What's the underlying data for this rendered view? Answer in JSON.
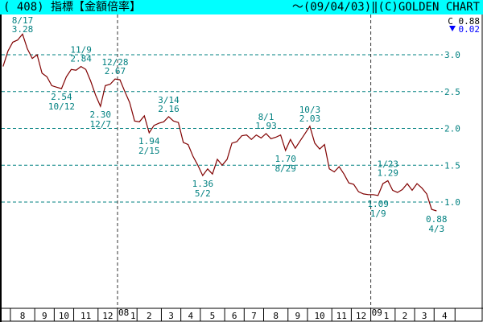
{
  "header": {
    "title": "( 408) 指標【金額倍率】",
    "right": "～(09/04/03)‖(C)GOLDEN CHART"
  },
  "last": {
    "label": "C",
    "value": "0.88",
    "change_icon": "triangle-down-icon",
    "change": "0.02"
  },
  "colors": {
    "header_bg": "#00ffff",
    "line": "#800000",
    "grid": "#008080",
    "label": "#008080",
    "change": "#0000ff"
  },
  "chart_data": {
    "type": "line",
    "title": "",
    "xlabel": "",
    "ylabel": "",
    "ylim": [
      0.7,
      3.35
    ],
    "yticks": [
      "3.0",
      "2.5",
      "2.0",
      "1.5",
      "1.0"
    ],
    "ytick_values": [
      3.0,
      2.5,
      2.0,
      1.5,
      1.0
    ],
    "grid": true,
    "x_month_labels": [
      "8",
      "9",
      "10",
      "11",
      "12",
      "1",
      "2",
      "3",
      "4",
      "5",
      "6",
      "7",
      "8",
      "9",
      "10",
      "11",
      "12",
      "1",
      "2",
      "3",
      "4"
    ],
    "x_year_labels": [
      "08",
      "09"
    ],
    "points": [
      [
        "2007-07-20",
        2.84
      ],
      [
        "2007-07-27",
        3.05
      ],
      [
        "2007-08-03",
        3.17
      ],
      [
        "2007-08-10",
        3.2
      ],
      [
        "2007-08-17",
        3.28
      ],
      [
        "2007-08-24",
        3.08
      ],
      [
        "2007-08-31",
        2.95
      ],
      [
        "2007-09-07",
        3.0
      ],
      [
        "2007-09-14",
        2.75
      ],
      [
        "2007-09-21",
        2.7
      ],
      [
        "2007-09-28",
        2.58
      ],
      [
        "2007-10-05",
        2.56
      ],
      [
        "2007-10-12",
        2.54
      ],
      [
        "2007-10-19",
        2.7
      ],
      [
        "2007-10-26",
        2.8
      ],
      [
        "2007-11-02",
        2.79
      ],
      [
        "2007-11-09",
        2.84
      ],
      [
        "2007-11-16",
        2.8
      ],
      [
        "2007-11-23",
        2.64
      ],
      [
        "2007-11-30",
        2.45
      ],
      [
        "2007-12-07",
        2.3
      ],
      [
        "2007-12-14",
        2.58
      ],
      [
        "2007-12-21",
        2.6
      ],
      [
        "2007-12-28",
        2.67
      ],
      [
        "2008-01-04",
        2.66
      ],
      [
        "2008-01-11",
        2.5
      ],
      [
        "2008-01-18",
        2.35
      ],
      [
        "2008-01-25",
        2.1
      ],
      [
        "2008-02-01",
        2.09
      ],
      [
        "2008-02-08",
        2.17
      ],
      [
        "2008-02-15",
        1.94
      ],
      [
        "2008-02-22",
        2.04
      ],
      [
        "2008-02-29",
        2.07
      ],
      [
        "2008-03-07",
        2.09
      ],
      [
        "2008-03-14",
        2.16
      ],
      [
        "2008-03-21",
        2.1
      ],
      [
        "2008-03-28",
        2.08
      ],
      [
        "2008-04-04",
        1.81
      ],
      [
        "2008-04-11",
        1.78
      ],
      [
        "2008-04-18",
        1.62
      ],
      [
        "2008-04-25",
        1.5
      ],
      [
        "2008-05-02",
        1.36
      ],
      [
        "2008-05-09",
        1.45
      ],
      [
        "2008-05-16",
        1.38
      ],
      [
        "2008-05-23",
        1.58
      ],
      [
        "2008-05-30",
        1.5
      ],
      [
        "2008-06-06",
        1.58
      ],
      [
        "2008-06-13",
        1.8
      ],
      [
        "2008-06-20",
        1.82
      ],
      [
        "2008-06-27",
        1.9
      ],
      [
        "2008-07-04",
        1.91
      ],
      [
        "2008-07-11",
        1.85
      ],
      [
        "2008-07-18",
        1.91
      ],
      [
        "2008-07-25",
        1.87
      ],
      [
        "2008-08-01",
        1.93
      ],
      [
        "2008-08-08",
        1.86
      ],
      [
        "2008-08-15",
        1.88
      ],
      [
        "2008-08-22",
        1.91
      ],
      [
        "2008-08-29",
        1.7
      ],
      [
        "2008-09-05",
        1.85
      ],
      [
        "2008-09-12",
        1.73
      ],
      [
        "2008-09-19",
        1.83
      ],
      [
        "2008-09-26",
        1.93
      ],
      [
        "2008-10-03",
        2.03
      ],
      [
        "2008-10-10",
        1.8
      ],
      [
        "2008-10-17",
        1.72
      ],
      [
        "2008-10-24",
        1.78
      ],
      [
        "2008-10-31",
        1.45
      ],
      [
        "2008-11-07",
        1.41
      ],
      [
        "2008-11-14",
        1.48
      ],
      [
        "2008-11-21",
        1.38
      ],
      [
        "2008-11-28",
        1.26
      ],
      [
        "2008-12-05",
        1.24
      ],
      [
        "2008-12-12",
        1.14
      ],
      [
        "2008-12-19",
        1.11
      ],
      [
        "2008-12-26",
        1.1
      ],
      [
        "2009-01-02",
        1.1
      ],
      [
        "2009-01-09",
        1.09
      ],
      [
        "2009-01-16",
        1.25
      ],
      [
        "2009-01-23",
        1.29
      ],
      [
        "2009-01-30",
        1.16
      ],
      [
        "2009-02-06",
        1.13
      ],
      [
        "2009-02-13",
        1.17
      ],
      [
        "2009-02-20",
        1.25
      ],
      [
        "2009-02-27",
        1.16
      ],
      [
        "2009-03-06",
        1.25
      ],
      [
        "2009-03-13",
        1.19
      ],
      [
        "2009-03-20",
        1.11
      ],
      [
        "2009-03-27",
        0.9
      ],
      [
        "2009-04-03",
        0.88
      ]
    ],
    "annotations": [
      {
        "date": "2007-08-17",
        "value": 3.28,
        "date_text": "8/17",
        "value_text": "3.28",
        "position": "above"
      },
      {
        "date": "2007-10-12",
        "value": 2.54,
        "date_text": "10/12",
        "value_text": "2.54",
        "position": "below"
      },
      {
        "date": "2007-11-09",
        "value": 2.84,
        "date_text": "11/9",
        "value_text": "2.84",
        "position": "above"
      },
      {
        "date": "2007-12-07",
        "value": 2.3,
        "date_text": "12/7",
        "value_text": "2.30",
        "position": "below"
      },
      {
        "date": "2007-12-28",
        "value": 2.67,
        "date_text": "12/28",
        "value_text": "2.67",
        "position": "above"
      },
      {
        "date": "2008-02-15",
        "value": 1.94,
        "date_text": "2/15",
        "value_text": "1.94",
        "position": "below"
      },
      {
        "date": "2008-03-14",
        "value": 2.16,
        "date_text": "3/14",
        "value_text": "2.16",
        "position": "above"
      },
      {
        "date": "2008-05-02",
        "value": 1.36,
        "date_text": "5/2",
        "value_text": "1.36",
        "position": "below"
      },
      {
        "date": "2008-08-01",
        "value": 1.93,
        "date_text": "8/1",
        "value_text": "1.93",
        "position": "above"
      },
      {
        "date": "2008-08-29",
        "value": 1.7,
        "date_text": "8/29",
        "value_text": "1.70",
        "position": "below"
      },
      {
        "date": "2008-10-03",
        "value": 2.03,
        "date_text": "10/3",
        "value_text": "2.03",
        "position": "above"
      },
      {
        "date": "2009-01-09",
        "value": 1.09,
        "date_text": "1/9",
        "value_text": "1.09",
        "position": "below"
      },
      {
        "date": "2009-01-23",
        "value": 1.29,
        "date_text": "1/23",
        "value_text": "1.29",
        "position": "above"
      },
      {
        "date": "2009-04-03",
        "value": 0.88,
        "date_text": "4/3",
        "value_text": "0.88",
        "position": "below"
      }
    ]
  }
}
